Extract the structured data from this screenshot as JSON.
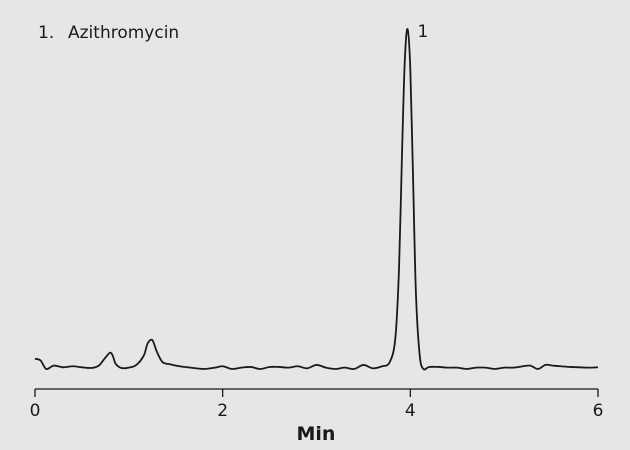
{
  "legend": {
    "number": "1.",
    "compound": "Azithromycin"
  },
  "colors": {
    "background": "#e6e6e6",
    "trace": "#1a1a1a"
  },
  "chart_data": {
    "type": "line",
    "title": "",
    "xlabel": "Min",
    "ylabel": "",
    "xlim": [
      0,
      6
    ],
    "ylim": [
      -0.03,
      1.0
    ],
    "grid": false,
    "xticks": [
      0,
      2,
      4,
      6
    ],
    "xtick_labels": [
      "0",
      "2",
      "4",
      "6"
    ],
    "peak_labels": [
      {
        "label": "1",
        "x": 3.97,
        "y": 1.0
      }
    ],
    "series": [
      {
        "x": [
          0.0,
          0.06,
          0.12,
          0.2,
          0.3,
          0.4,
          0.5,
          0.6,
          0.68,
          0.74,
          0.8,
          0.83,
          0.86,
          0.92,
          1.0,
          1.08,
          1.16,
          1.2,
          1.25,
          1.3,
          1.36,
          1.44,
          1.54,
          1.66,
          1.8,
          1.92,
          2.0,
          2.1,
          2.2,
          2.3,
          2.4,
          2.5,
          2.6,
          2.7,
          2.8,
          2.9,
          3.0,
          3.1,
          3.2,
          3.3,
          3.4,
          3.5,
          3.6,
          3.7,
          3.78,
          3.84,
          3.88,
          3.91,
          3.94,
          3.97,
          4.0,
          4.03,
          4.06,
          4.1,
          4.14,
          4.2,
          4.3,
          4.4,
          4.5,
          4.6,
          4.7,
          4.8,
          4.9,
          5.0,
          5.1,
          5.2,
          5.28,
          5.36,
          5.44,
          5.52,
          5.6,
          5.7,
          5.8,
          5.9,
          6.0
        ],
        "y": [
          0.03,
          0.025,
          0.0,
          0.01,
          0.005,
          0.008,
          0.005,
          0.003,
          0.01,
          0.03,
          0.048,
          0.038,
          0.015,
          0.003,
          0.004,
          0.012,
          0.04,
          0.075,
          0.085,
          0.05,
          0.02,
          0.014,
          0.008,
          0.004,
          0.0,
          0.004,
          0.008,
          0.0,
          0.004,
          0.006,
          0.0,
          0.006,
          0.006,
          0.004,
          0.008,
          0.002,
          0.012,
          0.004,
          0.0,
          0.004,
          0.0,
          0.012,
          0.002,
          0.008,
          0.02,
          0.09,
          0.3,
          0.62,
          0.9,
          1.0,
          0.88,
          0.55,
          0.22,
          0.04,
          0.0,
          0.006,
          0.006,
          0.004,
          0.004,
          0.0,
          0.004,
          0.004,
          0.0,
          0.004,
          0.004,
          0.008,
          0.01,
          0.0,
          0.012,
          0.01,
          0.008,
          0.006,
          0.005,
          0.004,
          0.005
        ]
      }
    ]
  }
}
